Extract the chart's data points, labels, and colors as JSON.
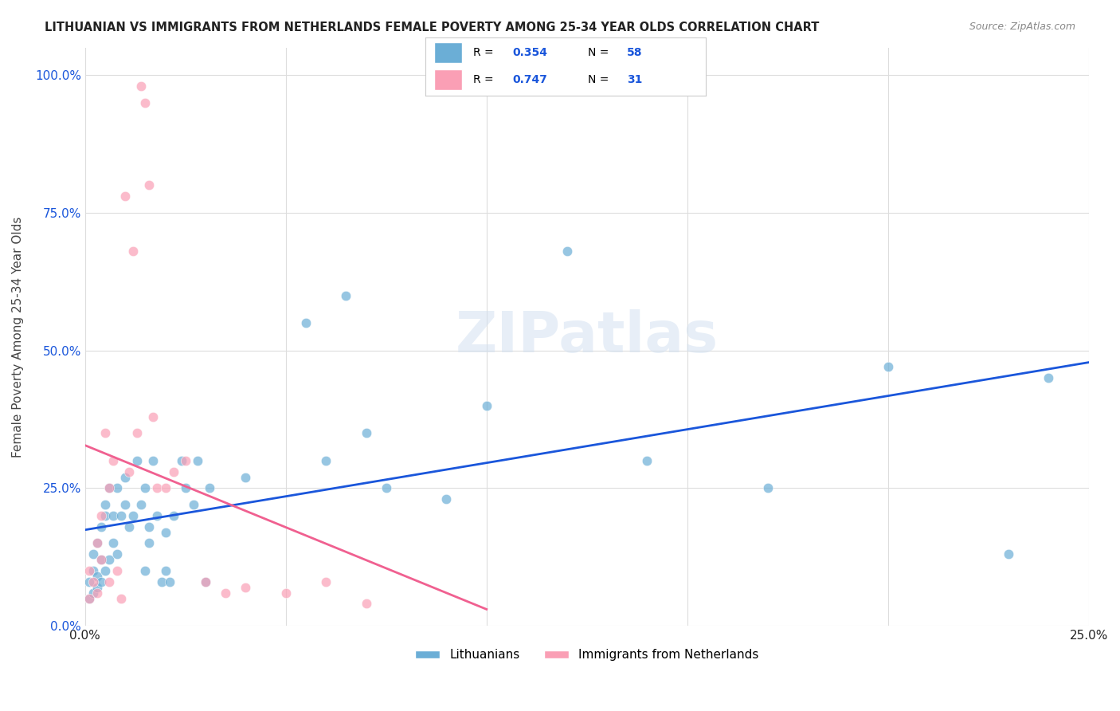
{
  "title": "LITHUANIAN VS IMMIGRANTS FROM NETHERLANDS FEMALE POVERTY AMONG 25-34 YEAR OLDS CORRELATION CHART",
  "source": "Source: ZipAtlas.com",
  "ylabel": "Female Poverty Among 25-34 Year Olds",
  "xlim": [
    0.0,
    0.25
  ],
  "ylim": [
    0.0,
    1.05
  ],
  "ytick_labels": [
    "0.0%",
    "25.0%",
    "50.0%",
    "75.0%",
    "100.0%"
  ],
  "ytick_positions": [
    0.0,
    0.25,
    0.5,
    0.75,
    1.0
  ],
  "background_color": "#ffffff",
  "grid_color": "#dddddd",
  "watermark": "ZIPatlas",
  "blue_color": "#6baed6",
  "pink_color": "#fa9fb5",
  "line_blue": "#1a56db",
  "line_pink": "#f06090",
  "r_blue": 0.354,
  "r_pink": 0.747,
  "n_blue": 58,
  "n_pink": 31,
  "blue_x": [
    0.001,
    0.001,
    0.002,
    0.002,
    0.002,
    0.003,
    0.003,
    0.003,
    0.004,
    0.004,
    0.004,
    0.005,
    0.005,
    0.005,
    0.006,
    0.006,
    0.007,
    0.007,
    0.008,
    0.008,
    0.009,
    0.01,
    0.01,
    0.011,
    0.012,
    0.013,
    0.014,
    0.015,
    0.015,
    0.016,
    0.016,
    0.017,
    0.018,
    0.019,
    0.02,
    0.02,
    0.021,
    0.022,
    0.024,
    0.025,
    0.027,
    0.028,
    0.03,
    0.031,
    0.04,
    0.055,
    0.06,
    0.065,
    0.07,
    0.075,
    0.09,
    0.1,
    0.12,
    0.14,
    0.17,
    0.2,
    0.23,
    0.24
  ],
  "blue_y": [
    0.05,
    0.08,
    0.06,
    0.1,
    0.13,
    0.07,
    0.09,
    0.15,
    0.08,
    0.12,
    0.18,
    0.1,
    0.2,
    0.22,
    0.12,
    0.25,
    0.15,
    0.2,
    0.13,
    0.25,
    0.2,
    0.22,
    0.27,
    0.18,
    0.2,
    0.3,
    0.22,
    0.25,
    0.1,
    0.15,
    0.18,
    0.3,
    0.2,
    0.08,
    0.1,
    0.17,
    0.08,
    0.2,
    0.3,
    0.25,
    0.22,
    0.3,
    0.08,
    0.25,
    0.27,
    0.55,
    0.3,
    0.6,
    0.35,
    0.25,
    0.23,
    0.4,
    0.68,
    0.3,
    0.25,
    0.47,
    0.13,
    0.45
  ],
  "pink_x": [
    0.001,
    0.001,
    0.002,
    0.003,
    0.003,
    0.004,
    0.004,
    0.005,
    0.006,
    0.006,
    0.007,
    0.008,
    0.009,
    0.01,
    0.011,
    0.012,
    0.013,
    0.014,
    0.015,
    0.016,
    0.017,
    0.018,
    0.02,
    0.022,
    0.025,
    0.03,
    0.035,
    0.04,
    0.05,
    0.06,
    0.07
  ],
  "pink_y": [
    0.05,
    0.1,
    0.08,
    0.06,
    0.15,
    0.12,
    0.2,
    0.35,
    0.08,
    0.25,
    0.3,
    0.1,
    0.05,
    0.78,
    0.28,
    0.68,
    0.35,
    0.98,
    0.95,
    0.8,
    0.38,
    0.25,
    0.25,
    0.28,
    0.3,
    0.08,
    0.06,
    0.07,
    0.06,
    0.08,
    0.04
  ],
  "legend_blue": "Lithuanians",
  "legend_pink": "Immigrants from Netherlands"
}
